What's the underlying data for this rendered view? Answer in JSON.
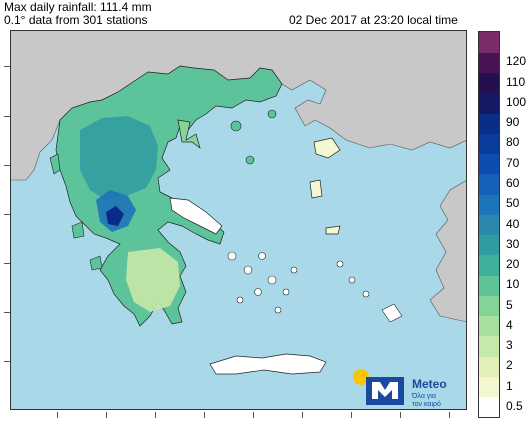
{
  "header": {
    "title": "Max daily rainfall: 111.4 mm",
    "subtitle": "0.1° data from 301 stations",
    "timestamp": "02 Dec 2017 at 23:20 local time"
  },
  "colorbar": {
    "levels": [
      {
        "label": "0.5",
        "color": "#ffffff"
      },
      {
        "label": "1",
        "color": "#f4f8d0"
      },
      {
        "label": "2",
        "color": "#e2f0b8"
      },
      {
        "label": "3",
        "color": "#c6e8a8"
      },
      {
        "label": "4",
        "color": "#a8e0a0"
      },
      {
        "label": "5",
        "color": "#84d498"
      },
      {
        "label": "10",
        "color": "#5ec498"
      },
      {
        "label": "20",
        "color": "#3cb098"
      },
      {
        "label": "30",
        "color": "#2e9ca0"
      },
      {
        "label": "40",
        "color": "#2a88ac"
      },
      {
        "label": "50",
        "color": "#1e74b8"
      },
      {
        "label": "60",
        "color": "#1560b8"
      },
      {
        "label": "70",
        "color": "#0e4cb0"
      },
      {
        "label": "80",
        "color": "#0a3c9e"
      },
      {
        "label": "90",
        "color": "#082e88"
      },
      {
        "label": "100",
        "color": "#141a66"
      },
      {
        "label": "110",
        "color": "#24104e"
      },
      {
        "label": "120",
        "color": "#4a1454"
      },
      {
        "label": "",
        "color": "#7a2c6a"
      }
    ]
  },
  "map": {
    "sea_color": "#a9d8e8",
    "land_outside_color": "#c8c8c8",
    "max_rain_color": "#0a2a8a"
  },
  "logo": {
    "brand": "Meteo",
    "tagline_1": "Όλα για",
    "tagline_2": "τον καιρό",
    "sun_color": "#f7c600",
    "brand_color": "#1a4aa0"
  }
}
